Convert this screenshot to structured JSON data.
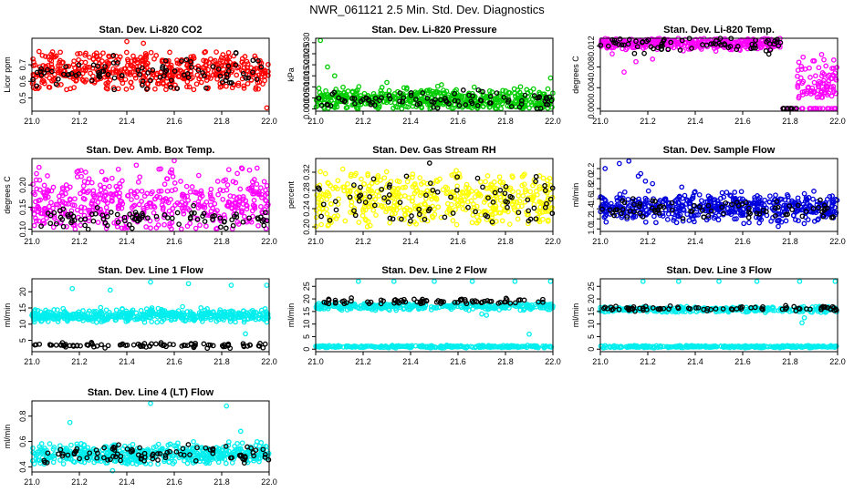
{
  "page": {
    "title": "NWR_061121  2.5 Min. Std. Dev. Diagnostics"
  },
  "chart_data": [
    {
      "type": "scatter",
      "title": "Stan. Dev. Li-820 CO2",
      "ylabel": "Licor ppm",
      "xlabel": "",
      "xlim": [
        21.0,
        22.0
      ],
      "ylim": [
        0.42,
        0.86
      ],
      "x_ticks": [
        "21.0",
        "21.2",
        "21.4",
        "21.6",
        "21.8",
        "22.0"
      ],
      "y_ticks": [
        {
          "v": 0.5,
          "label": "0.5"
        },
        {
          "v": 0.6,
          "label": "0.6"
        },
        {
          "v": 0.7,
          "label": "0.7"
        }
      ],
      "series": [
        {
          "name": "background",
          "color": "#ff0000",
          "count": 520,
          "y_center": 0.66,
          "y_spread": 0.06,
          "y_min": 0.55,
          "y_max": 0.78,
          "outliers": [
            [
              21.4,
              0.84
            ],
            [
              21.47,
              0.83
            ],
            [
              21.99,
              0.44
            ],
            [
              21.03,
              0.78
            ]
          ]
        },
        {
          "name": "sample",
          "color": "#000000",
          "count": 90,
          "y_center": 0.65,
          "y_spread": 0.05,
          "y_min": 0.55,
          "y_max": 0.82
        }
      ]
    },
    {
      "type": "scatter",
      "title": "Stan. Dev. Li-820 Pressure",
      "ylabel": "kPa",
      "xlabel": "",
      "xlim": [
        21.0,
        22.0
      ],
      "ylim": [
        -0.001,
        0.032
      ],
      "x_ticks": [
        "21.0",
        "21.2",
        "21.4",
        "21.6",
        "21.8",
        "22.0"
      ],
      "y_ticks": [
        {
          "v": 0.0,
          "label": "0.000"
        },
        {
          "v": 0.005,
          "label": "0.005"
        },
        {
          "v": 0.01,
          "label": "0.010"
        },
        {
          "v": 0.015,
          "label": "0.015"
        },
        {
          "v": 0.02,
          "label": "0.020"
        },
        {
          "v": 0.025,
          "label": "0.025"
        },
        {
          "v": 0.03,
          "label": "0.030"
        }
      ],
      "series": [
        {
          "name": "background",
          "color": "#00cc00",
          "count": 520,
          "y_center": 0.004,
          "y_spread": 0.0025,
          "y_min": 0.0,
          "y_max": 0.011,
          "outliers": [
            [
              21.02,
              0.031
            ],
            [
              21.05,
              0.019
            ],
            [
              21.08,
              0.015
            ],
            [
              21.99,
              0.014
            ],
            [
              21.3,
              0.012
            ]
          ]
        },
        {
          "name": "sample",
          "color": "#000000",
          "count": 90,
          "y_center": 0.004,
          "y_spread": 0.002,
          "y_min": 0.0,
          "y_max": 0.01
        }
      ]
    },
    {
      "type": "scatter",
      "title": "Stan. Dev. Li-820 Temp.",
      "ylabel": "degrees C",
      "xlabel": "",
      "xlim": [
        21.0,
        22.0
      ],
      "ylim": [
        -0.0005,
        0.0135
      ],
      "x_ticks": [
        "21.0",
        "21.2",
        "21.4",
        "21.6",
        "21.8",
        "22.0"
      ],
      "y_ticks": [
        {
          "v": 0.0,
          "label": "0.000"
        },
        {
          "v": 0.004,
          "label": "0.004"
        },
        {
          "v": 0.008,
          "label": "0.008"
        },
        {
          "v": 0.012,
          "label": "0.012"
        }
      ],
      "series": [
        {
          "name": "background",
          "color": "#ff00ff",
          "count": 380,
          "x_range": [
            21.0,
            21.76
          ],
          "y_center": 0.0125,
          "y_spread": 0.0005,
          "y_min": 0.011,
          "y_max": 0.0135,
          "outliers": [
            [
              21.1,
              0.007
            ],
            [
              21.15,
              0.009
            ],
            [
              21.22,
              0.0095
            ],
            [
              21.05,
              0.0105
            ]
          ]
        },
        {
          "name": "background-tail",
          "color": "#ff00ff",
          "count": 90,
          "x_range": [
            21.83,
            22.0
          ],
          "y_center": 0.005,
          "y_spread": 0.0025,
          "y_min": 0.002,
          "y_max": 0.0105
        },
        {
          "name": "background-zero",
          "color": "#ff00ff",
          "count": 30,
          "x_range": [
            21.76,
            22.0
          ],
          "y_center": 0.0,
          "y_spread": 0.0,
          "y_min": 0.0,
          "y_max": 0.0
        },
        {
          "name": "sample",
          "color": "#000000",
          "count": 70,
          "x_range": [
            21.0,
            21.76
          ],
          "y_center": 0.0123,
          "y_spread": 0.0008,
          "y_min": 0.01,
          "y_max": 0.0135
        },
        {
          "name": "sample-zero",
          "color": "#000000",
          "count": 12,
          "x_range": [
            21.77,
            21.83
          ],
          "y_center": 0.0,
          "y_spread": 0.0,
          "y_min": 0.0,
          "y_max": 0.0
        }
      ]
    },
    {
      "type": "scatter",
      "title": "Stan. Dev. Amb. Box Temp.",
      "ylabel": "degrees C",
      "xlabel": "",
      "xlim": [
        21.0,
        22.0
      ],
      "ylim": [
        0.095,
        0.26
      ],
      "x_ticks": [
        "21.0",
        "21.2",
        "21.4",
        "21.6",
        "21.8",
        "22.0"
      ],
      "y_ticks": [
        {
          "v": 0.1,
          "label": "0.10"
        },
        {
          "v": 0.15,
          "label": "0.15"
        },
        {
          "v": 0.2,
          "label": "0.20"
        }
      ],
      "series": [
        {
          "name": "background",
          "color": "#ff00ff",
          "count": 480,
          "y_center": 0.16,
          "y_spread": 0.035,
          "y_min": 0.1,
          "y_max": 0.24,
          "outliers": [
            [
              21.6,
              0.255
            ],
            [
              21.44,
              0.245
            ],
            [
              21.03,
              0.24
            ]
          ]
        },
        {
          "name": "sample",
          "color": "#000000",
          "count": 90,
          "y_center": 0.125,
          "y_spread": 0.01,
          "y_min": 0.1,
          "y_max": 0.16
        }
      ]
    },
    {
      "type": "scatter",
      "title": "Stan. Dev. Gas Stream RH",
      "ylabel": "percent",
      "xlabel": "",
      "xlim": [
        21.0,
        22.0
      ],
      "ylim": [
        0.19,
        0.35
      ],
      "x_ticks": [
        "21.0",
        "21.2",
        "21.4",
        "21.6",
        "21.8",
        "22.0"
      ],
      "y_ticks": [
        {
          "v": 0.2,
          "label": "0.20"
        },
        {
          "v": 0.24,
          "label": "0.24"
        },
        {
          "v": 0.28,
          "label": "0.28"
        },
        {
          "v": 0.32,
          "label": "0.32"
        }
      ],
      "series": [
        {
          "name": "background",
          "color": "#ffff00",
          "count": 480,
          "y_center": 0.26,
          "y_spread": 0.03,
          "y_min": 0.2,
          "y_max": 0.33
        },
        {
          "name": "sample",
          "color": "#000000",
          "count": 80,
          "y_center": 0.26,
          "y_spread": 0.03,
          "y_min": 0.21,
          "y_max": 0.32,
          "outliers": [
            [
              21.48,
              0.34
            ]
          ]
        }
      ]
    },
    {
      "type": "scatter",
      "title": "Stan. Dev. Sample Flow",
      "ylabel": "ml/min",
      "xlabel": "",
      "xlim": [
        21.0,
        22.0
      ],
      "ylim": [
        0.95,
        2.4
      ],
      "x_ticks": [
        "21.0",
        "21.2",
        "21.4",
        "21.6",
        "21.8",
        "22.0"
      ],
      "y_ticks": [
        {
          "v": 1.0,
          "label": "1.0"
        },
        {
          "v": 1.2,
          "label": "1.2"
        },
        {
          "v": 1.4,
          "label": "1.4"
        },
        {
          "v": 1.6,
          "label": "1.6"
        },
        {
          "v": 1.8,
          "label": "1.8"
        },
        {
          "v": 2.0,
          "label": "2.0"
        },
        {
          "v": 2.2,
          "label": "2.2"
        }
      ],
      "series": [
        {
          "name": "background",
          "color": "#0000dd",
          "count": 520,
          "y_center": 1.42,
          "y_spread": 0.13,
          "y_min": 1.1,
          "y_max": 1.9,
          "outliers": [
            [
              21.02,
              2.2
            ],
            [
              21.08,
              2.3
            ],
            [
              21.12,
              2.35
            ],
            [
              21.16,
              2.05
            ],
            [
              21.19,
              1.95
            ],
            [
              21.22,
              1.9
            ],
            [
              21.17,
              2.1
            ],
            [
              21.75,
              1.05
            ],
            [
              21.86,
              1.7
            ],
            [
              21.9,
              1.75
            ]
          ]
        },
        {
          "name": "sample",
          "color": "#000000",
          "count": 80,
          "y_center": 1.4,
          "y_spread": 0.1,
          "y_min": 1.2,
          "y_max": 2.1
        }
      ]
    },
    {
      "type": "scatter",
      "title": "Stan. Dev. Line 1 Flow",
      "ylabel": "ml/min",
      "xlabel": "",
      "xlim": [
        21.0,
        22.0
      ],
      "ylim": [
        1.5,
        24
      ],
      "x_ticks": [
        "21.0",
        "21.2",
        "21.4",
        "21.6",
        "21.8",
        "22.0"
      ],
      "y_ticks": [
        {
          "v": 5,
          "label": "5"
        },
        {
          "v": 10,
          "label": "10"
        },
        {
          "v": 15,
          "label": "15"
        },
        {
          "v": 20,
          "label": "20"
        }
      ],
      "series": [
        {
          "name": "background",
          "color": "#00eeee",
          "count": 520,
          "y_center": 12.7,
          "y_spread": 0.9,
          "y_min": 10.5,
          "y_max": 15.5,
          "outliers": [
            [
              21.17,
              21.0
            ],
            [
              21.33,
              20.5
            ],
            [
              21.5,
              23.0
            ],
            [
              21.66,
              22.5
            ],
            [
              21.84,
              22.0
            ],
            [
              21.99,
              22.0
            ],
            [
              21.9,
              7.0
            ]
          ]
        },
        {
          "name": "sample",
          "color": "#000000",
          "count": 90,
          "y_center": 3.5,
          "y_spread": 0.4,
          "y_min": 2.5,
          "y_max": 4.5
        }
      ]
    },
    {
      "type": "scatter",
      "title": "Stan. Dev. Line 2 Flow",
      "ylabel": "ml/min",
      "xlabel": "",
      "xlim": [
        21.0,
        22.0
      ],
      "ylim": [
        -1,
        28
      ],
      "x_ticks": [
        "21.0",
        "21.2",
        "21.4",
        "21.6",
        "21.8",
        "22.0"
      ],
      "y_ticks": [
        {
          "v": 0,
          "label": "0"
        },
        {
          "v": 5,
          "label": "5"
        },
        {
          "v": 10,
          "label": "10"
        },
        {
          "v": 15,
          "label": "15"
        },
        {
          "v": 20,
          "label": "20"
        },
        {
          "v": 25,
          "label": "25"
        }
      ],
      "series": [
        {
          "name": "background-low",
          "color": "#00eeee",
          "count": 300,
          "y_center": 1.0,
          "y_spread": 0.2,
          "y_min": 0.5,
          "y_max": 1.6
        },
        {
          "name": "background-high",
          "color": "#00eeee",
          "count": 320,
          "y_center": 17.0,
          "y_spread": 0.7,
          "y_min": 15.5,
          "y_max": 18.5,
          "outliers": [
            [
              21.18,
              27.0
            ],
            [
              21.33,
              27.0
            ],
            [
              21.5,
              27.0
            ],
            [
              21.66,
              27.0
            ],
            [
              21.84,
              27.0
            ],
            [
              21.99,
              27.0
            ],
            [
              21.7,
              14.0
            ],
            [
              21.72,
              13.5
            ],
            [
              21.9,
              6.0
            ]
          ]
        },
        {
          "name": "sample",
          "color": "#000000",
          "count": 80,
          "y_center": 19.0,
          "y_spread": 0.5,
          "y_min": 18.0,
          "y_max": 20.5
        }
      ]
    },
    {
      "type": "scatter",
      "title": "Stan. Dev. Line 3 Flow",
      "ylabel": "ml/min",
      "xlabel": "",
      "xlim": [
        21.0,
        22.0
      ],
      "ylim": [
        -1,
        28
      ],
      "x_ticks": [
        "21.0",
        "21.2",
        "21.4",
        "21.6",
        "21.8",
        "22.0"
      ],
      "y_ticks": [
        {
          "v": 0,
          "label": "0"
        },
        {
          "v": 5,
          "label": "5"
        },
        {
          "v": 10,
          "label": "10"
        },
        {
          "v": 15,
          "label": "15"
        },
        {
          "v": 20,
          "label": "20"
        },
        {
          "v": 25,
          "label": "25"
        }
      ],
      "series": [
        {
          "name": "background-low",
          "color": "#00eeee",
          "count": 300,
          "y_center": 1.0,
          "y_spread": 0.2,
          "y_min": 0.5,
          "y_max": 1.6
        },
        {
          "name": "background-high",
          "color": "#00eeee",
          "count": 320,
          "y_center": 15.8,
          "y_spread": 0.5,
          "y_min": 14.5,
          "y_max": 17.0,
          "outliers": [
            [
              21.18,
              27.0
            ],
            [
              21.33,
              27.0
            ],
            [
              21.5,
              27.0
            ],
            [
              21.66,
              27.0
            ],
            [
              21.84,
              27.0
            ],
            [
              21.99,
              27.0
            ],
            [
              21.85,
              10.5
            ],
            [
              21.86,
              12.5
            ]
          ]
        },
        {
          "name": "sample",
          "color": "#000000",
          "count": 80,
          "y_center": 16.2,
          "y_spread": 0.5,
          "y_min": 15.0,
          "y_max": 17.5
        }
      ]
    },
    {
      "type": "scatter",
      "title": "Stan. Dev. Line 4 (LT) Flow",
      "ylabel": "ml/min",
      "xlabel": "",
      "xlim": [
        21.0,
        22.0
      ],
      "ylim": [
        0.36,
        0.92
      ],
      "x_ticks": [
        "21.0",
        "21.2",
        "21.4",
        "21.6",
        "21.8",
        "22.0"
      ],
      "y_ticks": [
        {
          "v": 0.4,
          "label": "0.4"
        },
        {
          "v": 0.6,
          "label": "0.6"
        },
        {
          "v": 0.8,
          "label": "0.8"
        }
      ],
      "series": [
        {
          "name": "background",
          "color": "#00eeee",
          "count": 520,
          "y_center": 0.5,
          "y_spread": 0.04,
          "y_min": 0.42,
          "y_max": 0.6,
          "outliers": [
            [
              21.5,
              0.9
            ],
            [
              21.82,
              0.88
            ],
            [
              21.16,
              0.75
            ],
            [
              21.34,
              0.37
            ],
            [
              21.88,
              0.68
            ]
          ]
        },
        {
          "name": "sample",
          "color": "#000000",
          "count": 90,
          "y_center": 0.5,
          "y_spread": 0.04,
          "y_min": 0.43,
          "y_max": 0.6
        }
      ]
    }
  ]
}
